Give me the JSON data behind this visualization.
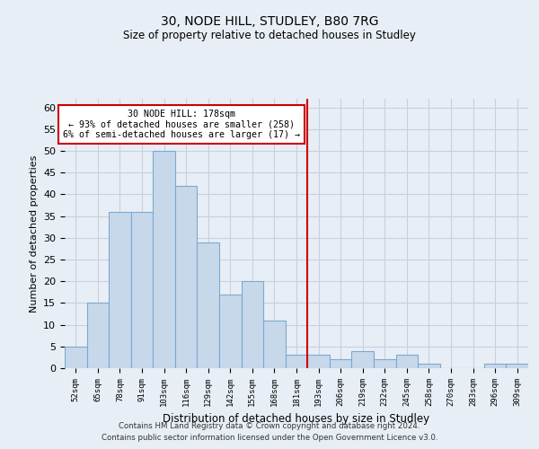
{
  "title": "30, NODE HILL, STUDLEY, B80 7RG",
  "subtitle": "Size of property relative to detached houses in Studley",
  "xlabel": "Distribution of detached houses by size in Studley",
  "ylabel": "Number of detached properties",
  "categories": [
    "52sqm",
    "65sqm",
    "78sqm",
    "91sqm",
    "103sqm",
    "116sqm",
    "129sqm",
    "142sqm",
    "155sqm",
    "168sqm",
    "181sqm",
    "193sqm",
    "206sqm",
    "219sqm",
    "232sqm",
    "245sqm",
    "258sqm",
    "270sqm",
    "283sqm",
    "296sqm",
    "309sqm"
  ],
  "values": [
    5,
    15,
    36,
    36,
    50,
    42,
    29,
    17,
    20,
    11,
    3,
    3,
    2,
    4,
    2,
    3,
    1,
    0,
    0,
    1,
    1
  ],
  "bar_color": "#c8d8eb",
  "bar_edge_color": "#7aaad0",
  "bar_width": 1.0,
  "grid_color": "#c8d0dc",
  "background_color": "#e8eef5",
  "red_line_x": 10.5,
  "annotation_title": "30 NODE HILL: 178sqm",
  "annotation_line1": "← 93% of detached houses are smaller (258)",
  "annotation_line2": "6% of semi-detached houses are larger (17) →",
  "annotation_box_color": "#ffffff",
  "annotation_box_edge": "#cc0000",
  "red_line_color": "#cc0000",
  "ylim": [
    0,
    62
  ],
  "yticks": [
    0,
    5,
    10,
    15,
    20,
    25,
    30,
    35,
    40,
    45,
    50,
    55,
    60
  ],
  "footer1": "Contains HM Land Registry data © Crown copyright and database right 2024.",
  "footer2": "Contains public sector information licensed under the Open Government Licence v3.0."
}
